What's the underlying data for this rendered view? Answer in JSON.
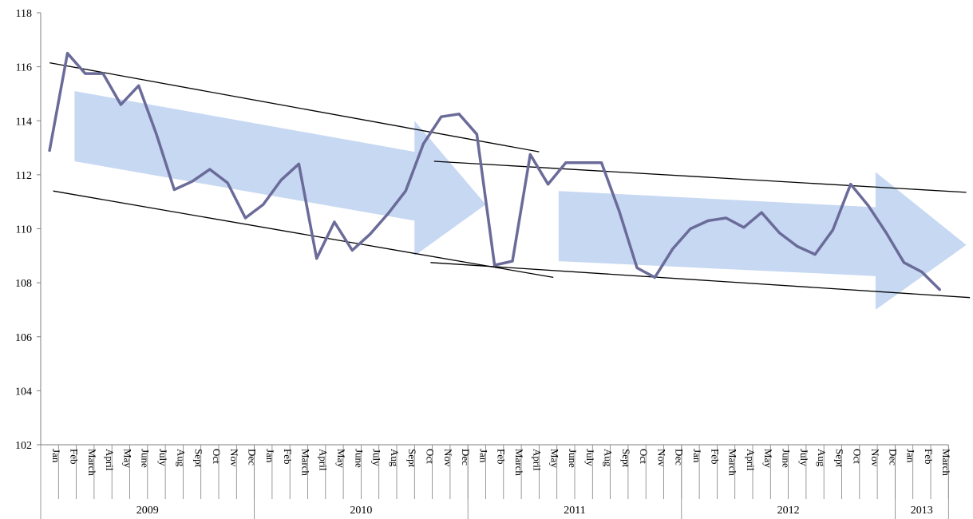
{
  "chart_data": {
    "type": "line",
    "title": "",
    "xlabel": "",
    "ylabel": "",
    "ylim": [
      102,
      118
    ],
    "yticks": [
      102,
      104,
      106,
      108,
      110,
      112,
      114,
      116,
      118
    ],
    "grid": false,
    "legend": "none",
    "colors": {
      "series": "#6b6b9a",
      "arrows": "#c6d8f2",
      "trend_lines": "#000000",
      "axis": "#7f7f7f"
    },
    "years": [
      {
        "label": "2009",
        "months": 12
      },
      {
        "label": "2010",
        "months": 12
      },
      {
        "label": "2011",
        "months": 12
      },
      {
        "label": "2012",
        "months": 12
      },
      {
        "label": "2013",
        "months": 3
      }
    ],
    "categories": [
      "Jan",
      "Feb",
      "March",
      "April",
      "May",
      "June",
      "July",
      "Aug",
      "Sept",
      "Oct",
      "Nov",
      "Dec",
      "Jan",
      "Feb",
      "March",
      "April",
      "May",
      "June",
      "July",
      "Aug",
      "Sept",
      "Oct",
      "Nov",
      "Dec",
      "Jan",
      "Feb",
      "March",
      "April",
      "May",
      "June",
      "July",
      "Aug",
      "Sept",
      "Oct",
      "Nov",
      "Dec",
      "Jan",
      "Feb",
      "March",
      "April",
      "May",
      "June",
      "July",
      "Aug",
      "Sept",
      "Oct",
      "Nov",
      "Dec",
      "Jan",
      "Feb",
      "March"
    ],
    "series": [
      {
        "values": [
          112.9,
          116.5,
          115.75,
          115.75,
          114.6,
          115.3,
          113.5,
          111.45,
          111.75,
          112.2,
          111.7,
          110.4,
          110.9,
          111.8,
          112.4,
          108.9,
          110.25,
          109.2,
          109.8,
          110.55,
          111.4,
          113.15,
          114.15,
          114.25,
          113.5,
          108.65,
          108.8,
          112.75,
          111.65,
          112.45,
          112.45,
          112.45,
          110.65,
          108.55,
          108.2,
          109.25,
          110.0,
          110.3,
          110.4,
          110.05,
          110.6,
          109.85,
          109.35,
          109.05,
          109.95,
          111.65,
          110.85,
          109.85,
          108.75,
          108.4,
          107.75
        ]
      }
    ],
    "trend_lines": [
      {
        "from": {
          "x": 0,
          "y": 116.15
        },
        "to": {
          "x": 27.5,
          "y": 112.85
        }
      },
      {
        "from": {
          "x": 0.2,
          "y": 111.4
        },
        "to": {
          "x": 28.3,
          "y": 108.2
        }
      },
      {
        "from": {
          "x": 21.6,
          "y": 112.5
        },
        "to": {
          "x": 51.5,
          "y": 111.35
        }
      },
      {
        "from": {
          "x": 21.4,
          "y": 108.75
        },
        "to": {
          "x": 51.7,
          "y": 107.45
        }
      }
    ],
    "arrows": [
      {
        "start_x": 1.4,
        "end_x": 24.5,
        "start_upper": 115.1,
        "start_lower": 112.5,
        "shaft_end_x": 20.5,
        "shaft_end_upper": 112.85,
        "shaft_end_lower": 110.3,
        "head_top": 114.0,
        "head_bottom": 109.0,
        "tip": 110.9
      },
      {
        "start_x": 28.6,
        "end_x": 51.5,
        "start_upper": 111.4,
        "start_lower": 108.8,
        "shaft_end_x": 46.4,
        "shaft_end_upper": 110.8,
        "shaft_end_lower": 108.25,
        "head_top": 112.1,
        "head_bottom": 107.0,
        "tip": 109.4
      }
    ]
  }
}
